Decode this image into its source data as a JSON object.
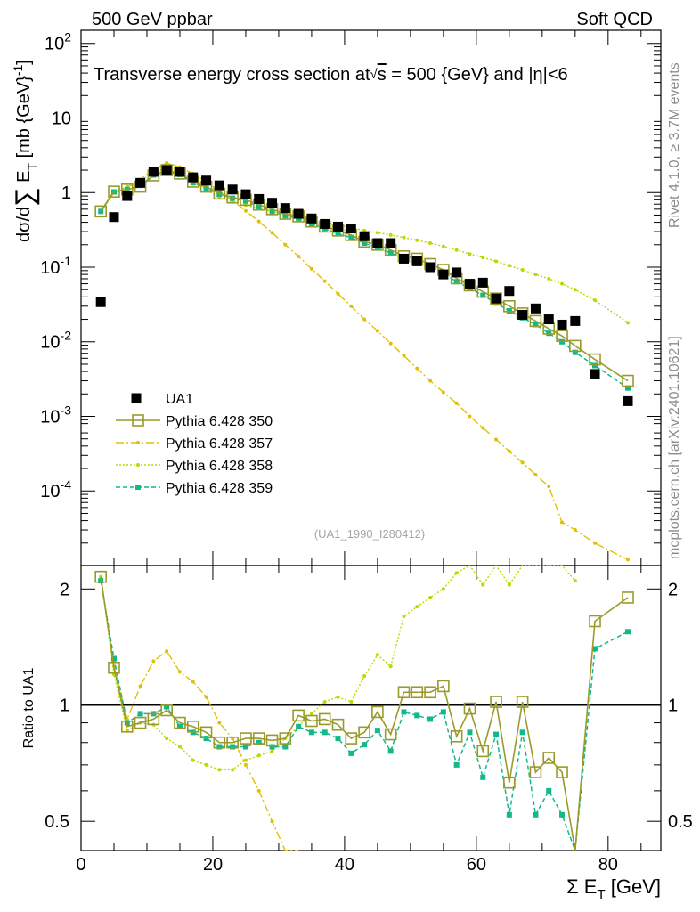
{
  "header": {
    "left": "500 GeV ppbar",
    "right": "Soft QCD"
  },
  "side_text": {
    "rivet": "Rivet 4.1.0, ≥ 3.7M events",
    "mcplots": "mcplots.cern.ch [arXiv:2401.10621]"
  },
  "watermark": "(UA1_1990_I280412)",
  "colors": {
    "data": "#000000",
    "p350": "#9a9a2a",
    "p357": "#e0c000",
    "p358": "#bcd800",
    "p359": "#11b889"
  },
  "chart_data": {
    "type": "scatter",
    "title": "Transverse energy cross section at√s = 500 {GeV} and |η|<6",
    "title_parts": {
      "lead": "Transverse energy cross section at",
      "s": "s",
      "mid": " = 500 {GeV} and |",
      "eta": "η",
      "tail": "|<6"
    },
    "xlabel": "Σ E_T [GeV]",
    "xlabel_parts": {
      "sigma": "Σ E",
      "sub": "T",
      "unit": " [GeV]"
    },
    "xlim": [
      0,
      88
    ],
    "x_ticks": [
      "0",
      "20",
      "40",
      "60",
      "80"
    ],
    "main": {
      "ylabel": "dσ/dΣ E_T [mb {GeV}^-1]",
      "ylabel_parts": {
        "a": "dσ/d",
        "sum": "∑",
        "b": " E",
        "sub": "T",
        "c": " [mb {GeV}",
        "sup": "-1",
        "d": "]"
      },
      "yscale": "log",
      "ylim": [
        1e-05,
        150
      ],
      "y_ticks": [
        {
          "base": "10",
          "exp": "-4"
        },
        {
          "base": "10",
          "exp": "-3"
        },
        {
          "base": "10",
          "exp": "-2"
        },
        {
          "base": "10",
          "exp": "-1"
        },
        {
          "base": "1",
          "exp": ""
        },
        {
          "base": "10",
          "exp": ""
        },
        {
          "base": "10",
          "exp": "2"
        }
      ]
    },
    "ratio": {
      "ylabel": "Ratio to UA1",
      "yscale": "log",
      "ylim": [
        0.42,
        2.3
      ],
      "y_ticks": [
        "0.5",
        "1",
        "2"
      ]
    },
    "legend": [
      {
        "name": "UA1",
        "key": "data"
      },
      {
        "name": "Pythia 6.428 350",
        "key": "p350"
      },
      {
        "name": "Pythia 6.428 357",
        "key": "p357"
      },
      {
        "name": "Pythia 6.428 358",
        "key": "p358"
      },
      {
        "name": "Pythia 6.428 359",
        "key": "p359"
      }
    ],
    "series": [
      {
        "key": "data",
        "name": "UA1",
        "x": [
          3,
          5,
          7,
          9,
          11,
          13,
          15,
          17,
          19,
          21,
          23,
          25,
          27,
          29,
          31,
          33,
          35,
          37,
          39,
          41,
          43,
          45,
          47,
          49,
          51,
          53,
          55,
          57,
          59,
          61,
          63,
          65,
          67,
          69,
          71,
          73,
          75,
          78,
          83
        ],
        "y": [
          0.034,
          0.47,
          0.9,
          1.35,
          1.9,
          2.0,
          1.9,
          1.6,
          1.45,
          1.25,
          1.1,
          0.95,
          0.82,
          0.73,
          0.62,
          0.52,
          0.45,
          0.38,
          0.35,
          0.33,
          0.26,
          0.21,
          0.21,
          0.13,
          0.12,
          0.1,
          0.08,
          0.085,
          0.06,
          0.062,
          0.038,
          0.048,
          0.023,
          0.028,
          0.02,
          0.017,
          0.019,
          0.0037,
          0.0016
        ]
      },
      {
        "key": "p350",
        "name": "Pythia 6.428 350",
        "x": [
          3,
          5,
          7,
          9,
          11,
          13,
          15,
          17,
          19,
          21,
          23,
          25,
          27,
          29,
          31,
          33,
          35,
          37,
          39,
          41,
          43,
          45,
          47,
          49,
          51,
          53,
          55,
          57,
          59,
          61,
          63,
          65,
          67,
          69,
          71,
          73,
          75,
          78,
          83
        ],
        "y": [
          0.56,
          1.03,
          1.1,
          1.2,
          1.7,
          2.0,
          1.8,
          1.4,
          1.2,
          0.97,
          0.86,
          0.8,
          0.69,
          0.6,
          0.52,
          0.48,
          0.41,
          0.35,
          0.31,
          0.27,
          0.22,
          0.2,
          0.17,
          0.14,
          0.13,
          0.11,
          0.092,
          0.071,
          0.057,
          0.047,
          0.038,
          0.03,
          0.024,
          0.019,
          0.015,
          0.012,
          0.0088,
          0.0058,
          0.003
        ],
        "ratio": [
          2.15,
          1.25,
          0.88,
          0.9,
          0.92,
          0.97,
          0.9,
          0.88,
          0.85,
          0.8,
          0.8,
          0.82,
          0.82,
          0.81,
          0.82,
          0.94,
          0.91,
          0.92,
          0.89,
          0.82,
          0.85,
          0.96,
          0.84,
          1.08,
          1.08,
          1.08,
          1.12,
          0.83,
          0.98,
          0.76,
          1.02,
          0.63,
          1.02,
          0.67,
          0.73,
          0.67,
          0.4,
          1.65,
          1.9
        ]
      },
      {
        "key": "p357",
        "name": "Pythia 6.428 357",
        "x": [
          3,
          5,
          7,
          9,
          11,
          13,
          15,
          17,
          19,
          21,
          23,
          25,
          27,
          29,
          31,
          33,
          35,
          37,
          39,
          41,
          43,
          45,
          47,
          49,
          51,
          53,
          55,
          57,
          59,
          61,
          63,
          65,
          67,
          69,
          71,
          73,
          75,
          78,
          83
        ],
        "y": [
          0.55,
          1.0,
          1.15,
          1.5,
          2.05,
          2.5,
          2.2,
          1.8,
          1.4,
          1.05,
          0.78,
          0.57,
          0.41,
          0.29,
          0.2,
          0.14,
          0.095,
          0.065,
          0.044,
          0.03,
          0.02,
          0.014,
          0.0095,
          0.0065,
          0.0044,
          0.003,
          0.0021,
          0.0015,
          0.001,
          0.0007,
          0.00049,
          0.00034,
          0.00024,
          0.000165,
          0.000115,
          3.8e-05,
          3e-05,
          2e-05,
          1.2e-05
        ],
        "ratio": [
          2.15,
          1.26,
          0.92,
          1.12,
          1.3,
          1.38,
          1.22,
          1.15,
          1.05,
          0.9,
          0.82,
          0.7,
          0.6,
          0.5,
          0.4,
          0.4
        ]
      },
      {
        "key": "p358",
        "name": "Pythia 6.428 358",
        "x": [
          3,
          5,
          7,
          9,
          11,
          13,
          15,
          17,
          19,
          21,
          23,
          25,
          27,
          29,
          31,
          33,
          35,
          37,
          39,
          41,
          43,
          45,
          47,
          49,
          51,
          53,
          55,
          57,
          59,
          61,
          63,
          65,
          67,
          69,
          71,
          73,
          75,
          78,
          83
        ],
        "y": [
          0.57,
          1.05,
          1.2,
          1.45,
          1.85,
          2.15,
          1.9,
          1.5,
          1.1,
          0.85,
          0.75,
          0.68,
          0.61,
          0.56,
          0.51,
          0.46,
          0.43,
          0.4,
          0.37,
          0.34,
          0.31,
          0.29,
          0.27,
          0.25,
          0.23,
          0.21,
          0.19,
          0.17,
          0.15,
          0.135,
          0.12,
          0.105,
          0.092,
          0.08,
          0.07,
          0.06,
          0.05,
          0.036,
          0.018
        ],
        "ratio": [
          2.15,
          1.2,
          0.86,
          0.9,
          0.89,
          0.82,
          0.78,
          0.72,
          0.7,
          0.68,
          0.68,
          0.72,
          0.74,
          0.76,
          0.82,
          0.88,
          0.95,
          1.02,
          1.05,
          1.02,
          1.19,
          1.35,
          1.26,
          1.7,
          1.8,
          1.9,
          2.0,
          2.2,
          2.5,
          2.05,
          2.6,
          2.05,
          2.7,
          2.4,
          3.0,
          3.2,
          2.1
        ]
      },
      {
        "key": "p359",
        "name": "Pythia 6.428 359",
        "x": [
          3,
          5,
          7,
          9,
          11,
          13,
          15,
          17,
          19,
          21,
          23,
          25,
          27,
          29,
          31,
          33,
          35,
          37,
          39,
          41,
          43,
          45,
          47,
          49,
          51,
          53,
          55,
          57,
          59,
          61,
          63,
          65,
          67,
          69,
          71,
          73,
          75,
          78,
          83
        ],
        "y": [
          0.56,
          1.02,
          1.1,
          1.25,
          1.72,
          1.9,
          1.75,
          1.35,
          1.15,
          0.95,
          0.84,
          0.77,
          0.65,
          0.56,
          0.49,
          0.45,
          0.38,
          0.33,
          0.28,
          0.25,
          0.21,
          0.18,
          0.155,
          0.13,
          0.115,
          0.098,
          0.082,
          0.064,
          0.052,
          0.042,
          0.033,
          0.026,
          0.021,
          0.017,
          0.013,
          0.01,
          0.0072,
          0.0048,
          0.0024
        ],
        "ratio": [
          2.1,
          1.32,
          0.9,
          0.95,
          0.95,
          0.99,
          0.88,
          0.85,
          0.82,
          0.78,
          0.78,
          0.78,
          0.8,
          0.78,
          0.78,
          0.88,
          0.85,
          0.85,
          0.82,
          0.75,
          0.79,
          0.86,
          0.76,
          0.96,
          0.94,
          0.92,
          0.96,
          0.7,
          0.85,
          0.65,
          0.84,
          0.52,
          0.85,
          0.52,
          0.6,
          0.52,
          0.4,
          1.4,
          1.55
        ]
      }
    ]
  }
}
